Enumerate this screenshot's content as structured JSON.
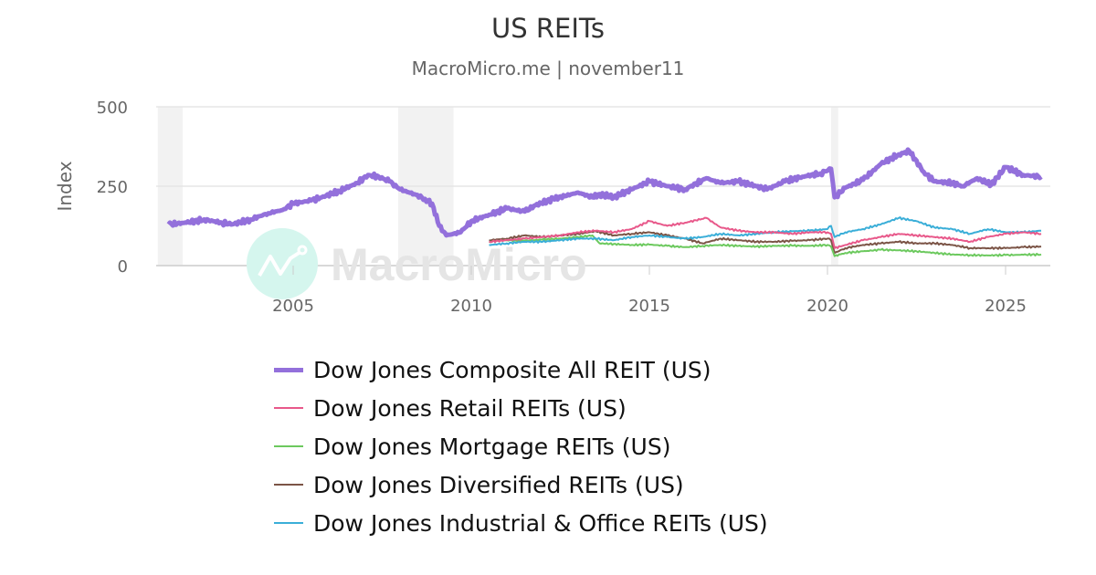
{
  "header": {
    "title": "US REITs",
    "subtitle": "MacroMicro.me | november11"
  },
  "watermark": {
    "text": "MacroMicro"
  },
  "axes": {
    "ylabel": "Index",
    "yticks": [
      "500",
      "250",
      "0"
    ],
    "xticks": [
      "2005",
      "2010",
      "2015",
      "2020",
      "2025"
    ]
  },
  "legend": {
    "items": [
      {
        "label": "Dow Jones Composite All REIT (US)",
        "color": "#9370DB"
      },
      {
        "label": "Dow Jones Retail REITs (US)",
        "color": "#E8588A"
      },
      {
        "label": "Dow Jones Mortgage REITs (US)",
        "color": "#6CC95E"
      },
      {
        "label": "Dow Jones Diversified REITs (US)",
        "color": "#7B5446"
      },
      {
        "label": "Dow Jones Industrial & Office REITs (US)",
        "color": "#3AAED8"
      }
    ]
  },
  "chart_data": {
    "type": "line",
    "title": "US REITs",
    "subtitle": "MacroMicro.me | november11",
    "xlabel": "",
    "ylabel": "Index",
    "ylim": [
      0,
      500
    ],
    "xlim": [
      2001.15,
      2026.25
    ],
    "yticks": [
      0,
      250,
      500
    ],
    "xticks": [
      2005,
      2010,
      2015,
      2020,
      2025
    ],
    "grid": "horizontal",
    "legend_position": "bottom",
    "recession_shading": [
      [
        2001.2,
        2001.9
      ],
      [
        2007.95,
        2009.5
      ],
      [
        2020.1,
        2020.3
      ]
    ],
    "series": [
      {
        "name": "Dow Jones Composite All REIT (US)",
        "color": "#9370DB",
        "x": [
          2001.5,
          2002.0,
          2002.5,
          2003.0,
          2003.3,
          2003.8,
          2004.3,
          2004.7,
          2005.0,
          2005.5,
          2005.8,
          2006.3,
          2006.8,
          2007.1,
          2007.4,
          2007.7,
          2008.0,
          2008.4,
          2008.7,
          2008.9,
          2009.1,
          2009.3,
          2009.7,
          2010.0,
          2010.5,
          2011.0,
          2011.5,
          2011.8,
          2012.3,
          2013.0,
          2013.4,
          2013.6,
          2014.0,
          2014.5,
          2015.0,
          2015.5,
          2016.0,
          2016.6,
          2017.0,
          2017.5,
          2018.0,
          2018.3,
          2018.8,
          2019.3,
          2019.8,
          2020.1,
          2020.2,
          2020.5,
          2021.0,
          2021.5,
          2022.0,
          2022.3,
          2022.7,
          2023.0,
          2023.5,
          2023.8,
          2024.2,
          2024.6,
          2025.0,
          2025.5,
          2026.0
        ],
        "values": [
          130,
          135,
          145,
          135,
          130,
          145,
          165,
          175,
          195,
          205,
          215,
          235,
          260,
          285,
          280,
          265,
          240,
          225,
          210,
          195,
          125,
          95,
          105,
          140,
          160,
          180,
          170,
          190,
          210,
          230,
          215,
          225,
          215,
          240,
          265,
          250,
          240,
          275,
          260,
          265,
          250,
          240,
          265,
          280,
          290,
          305,
          215,
          245,
          270,
          320,
          350,
          360,
          295,
          265,
          260,
          250,
          275,
          255,
          310,
          285,
          280
        ]
      },
      {
        "name": "Dow Jones Retail REITs (US)",
        "color": "#E8588A",
        "x": [
          2010.5,
          2011.0,
          2011.5,
          2012.0,
          2012.5,
          2013.0,
          2013.5,
          2014.0,
          2014.5,
          2015.0,
          2015.5,
          2016.0,
          2016.6,
          2017.0,
          2017.5,
          2018.0,
          2018.5,
          2019.0,
          2019.5,
          2020.0,
          2020.1,
          2020.2,
          2020.5,
          2021.0,
          2021.5,
          2022.0,
          2022.5,
          2023.0,
          2023.5,
          2024.0,
          2024.5,
          2025.0,
          2025.5,
          2026.0
        ],
        "values": [
          75,
          80,
          85,
          90,
          95,
          105,
          110,
          105,
          115,
          140,
          125,
          135,
          150,
          120,
          110,
          105,
          105,
          100,
          105,
          105,
          100,
          55,
          65,
          80,
          90,
          100,
          95,
          90,
          85,
          75,
          90,
          100,
          105,
          100
        ]
      },
      {
        "name": "Dow Jones Mortgage REITs (US)",
        "color": "#6CC95E",
        "x": [
          2010.5,
          2011.0,
          2011.5,
          2012.0,
          2012.5,
          2013.0,
          2013.4,
          2013.6,
          2014.0,
          2014.5,
          2015.0,
          2015.5,
          2016.0,
          2016.5,
          2017.0,
          2017.5,
          2018.0,
          2018.5,
          2019.0,
          2019.5,
          2020.0,
          2020.1,
          2020.2,
          2020.5,
          2021.0,
          2021.5,
          2022.0,
          2022.5,
          2023.0,
          2023.5,
          2024.0,
          2024.5,
          2025.0,
          2025.5,
          2026.0
        ],
        "values": [
          75,
          80,
          78,
          82,
          85,
          90,
          95,
          70,
          68,
          65,
          66,
          62,
          58,
          62,
          65,
          62,
          60,
          62,
          63,
          62,
          65,
          60,
          30,
          40,
          45,
          50,
          48,
          45,
          40,
          35,
          33,
          32,
          33,
          34,
          35
        ]
      },
      {
        "name": "Dow Jones Diversified REITs (US)",
        "color": "#7B5446",
        "x": [
          2010.5,
          2011.0,
          2011.5,
          2012.0,
          2012.5,
          2013.0,
          2013.5,
          2014.0,
          2014.5,
          2015.0,
          2015.5,
          2016.0,
          2016.5,
          2017.0,
          2017.5,
          2018.0,
          2018.5,
          2019.0,
          2019.5,
          2020.0,
          2020.1,
          2020.2,
          2020.5,
          2021.0,
          2021.5,
          2022.0,
          2022.5,
          2023.0,
          2023.5,
          2024.0,
          2024.5,
          2025.0,
          2025.5,
          2026.0
        ],
        "values": [
          80,
          85,
          95,
          90,
          95,
          100,
          108,
          95,
          100,
          105,
          95,
          85,
          70,
          85,
          80,
          75,
          75,
          78,
          80,
          85,
          80,
          40,
          55,
          65,
          70,
          75,
          70,
          70,
          65,
          55,
          55,
          55,
          58,
          60
        ]
      },
      {
        "name": "Dow Jones Industrial & Office REITs (US)",
        "color": "#3AAED8",
        "x": [
          2010.5,
          2011.0,
          2011.5,
          2012.0,
          2012.5,
          2013.0,
          2013.5,
          2014.0,
          2014.5,
          2015.0,
          2015.5,
          2016.0,
          2016.5,
          2017.0,
          2017.5,
          2018.0,
          2018.5,
          2019.0,
          2019.5,
          2020.0,
          2020.1,
          2020.2,
          2020.5,
          2021.0,
          2021.5,
          2022.0,
          2022.5,
          2023.0,
          2023.5,
          2024.0,
          2024.5,
          2025.0,
          2025.5,
          2026.0
        ],
        "values": [
          65,
          70,
          75,
          75,
          80,
          85,
          85,
          80,
          90,
          95,
          90,
          85,
          90,
          100,
          95,
          100,
          105,
          108,
          110,
          115,
          125,
          90,
          105,
          115,
          130,
          150,
          140,
          120,
          115,
          100,
          115,
          105,
          105,
          110
        ]
      }
    ]
  }
}
